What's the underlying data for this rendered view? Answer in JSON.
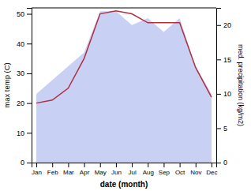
{
  "chart_data": {
    "type": "line",
    "categories": [
      "Jan",
      "Feb",
      "Mar",
      "Apr",
      "May",
      "Jun",
      "Jul",
      "Aug",
      "Sep",
      "Oct",
      "Nov",
      "Dec"
    ],
    "series": [
      {
        "type": "area",
        "axis": "y2",
        "color": "#c8d0f4",
        "values": [
          10,
          12,
          14,
          16,
          22,
          22,
          20,
          21,
          19,
          21,
          14,
          10
        ]
      },
      {
        "type": "line",
        "color": "#b03040",
        "values": [
          20,
          21,
          25,
          35,
          50,
          51,
          50,
          47,
          47,
          47,
          32,
          22
        ]
      }
    ],
    "xlabel": "date (month)",
    "ylabel": "max temp (C)",
    "y2label": "med. precipitation (kg/m2)",
    "ylim": [
      0,
      52
    ],
    "yticks": [
      0,
      10,
      20,
      30,
      40,
      50
    ],
    "y2lim": [
      0,
      22.5
    ],
    "y2ticks": [
      0,
      5,
      10,
      15,
      20
    ],
    "grid": false
  }
}
